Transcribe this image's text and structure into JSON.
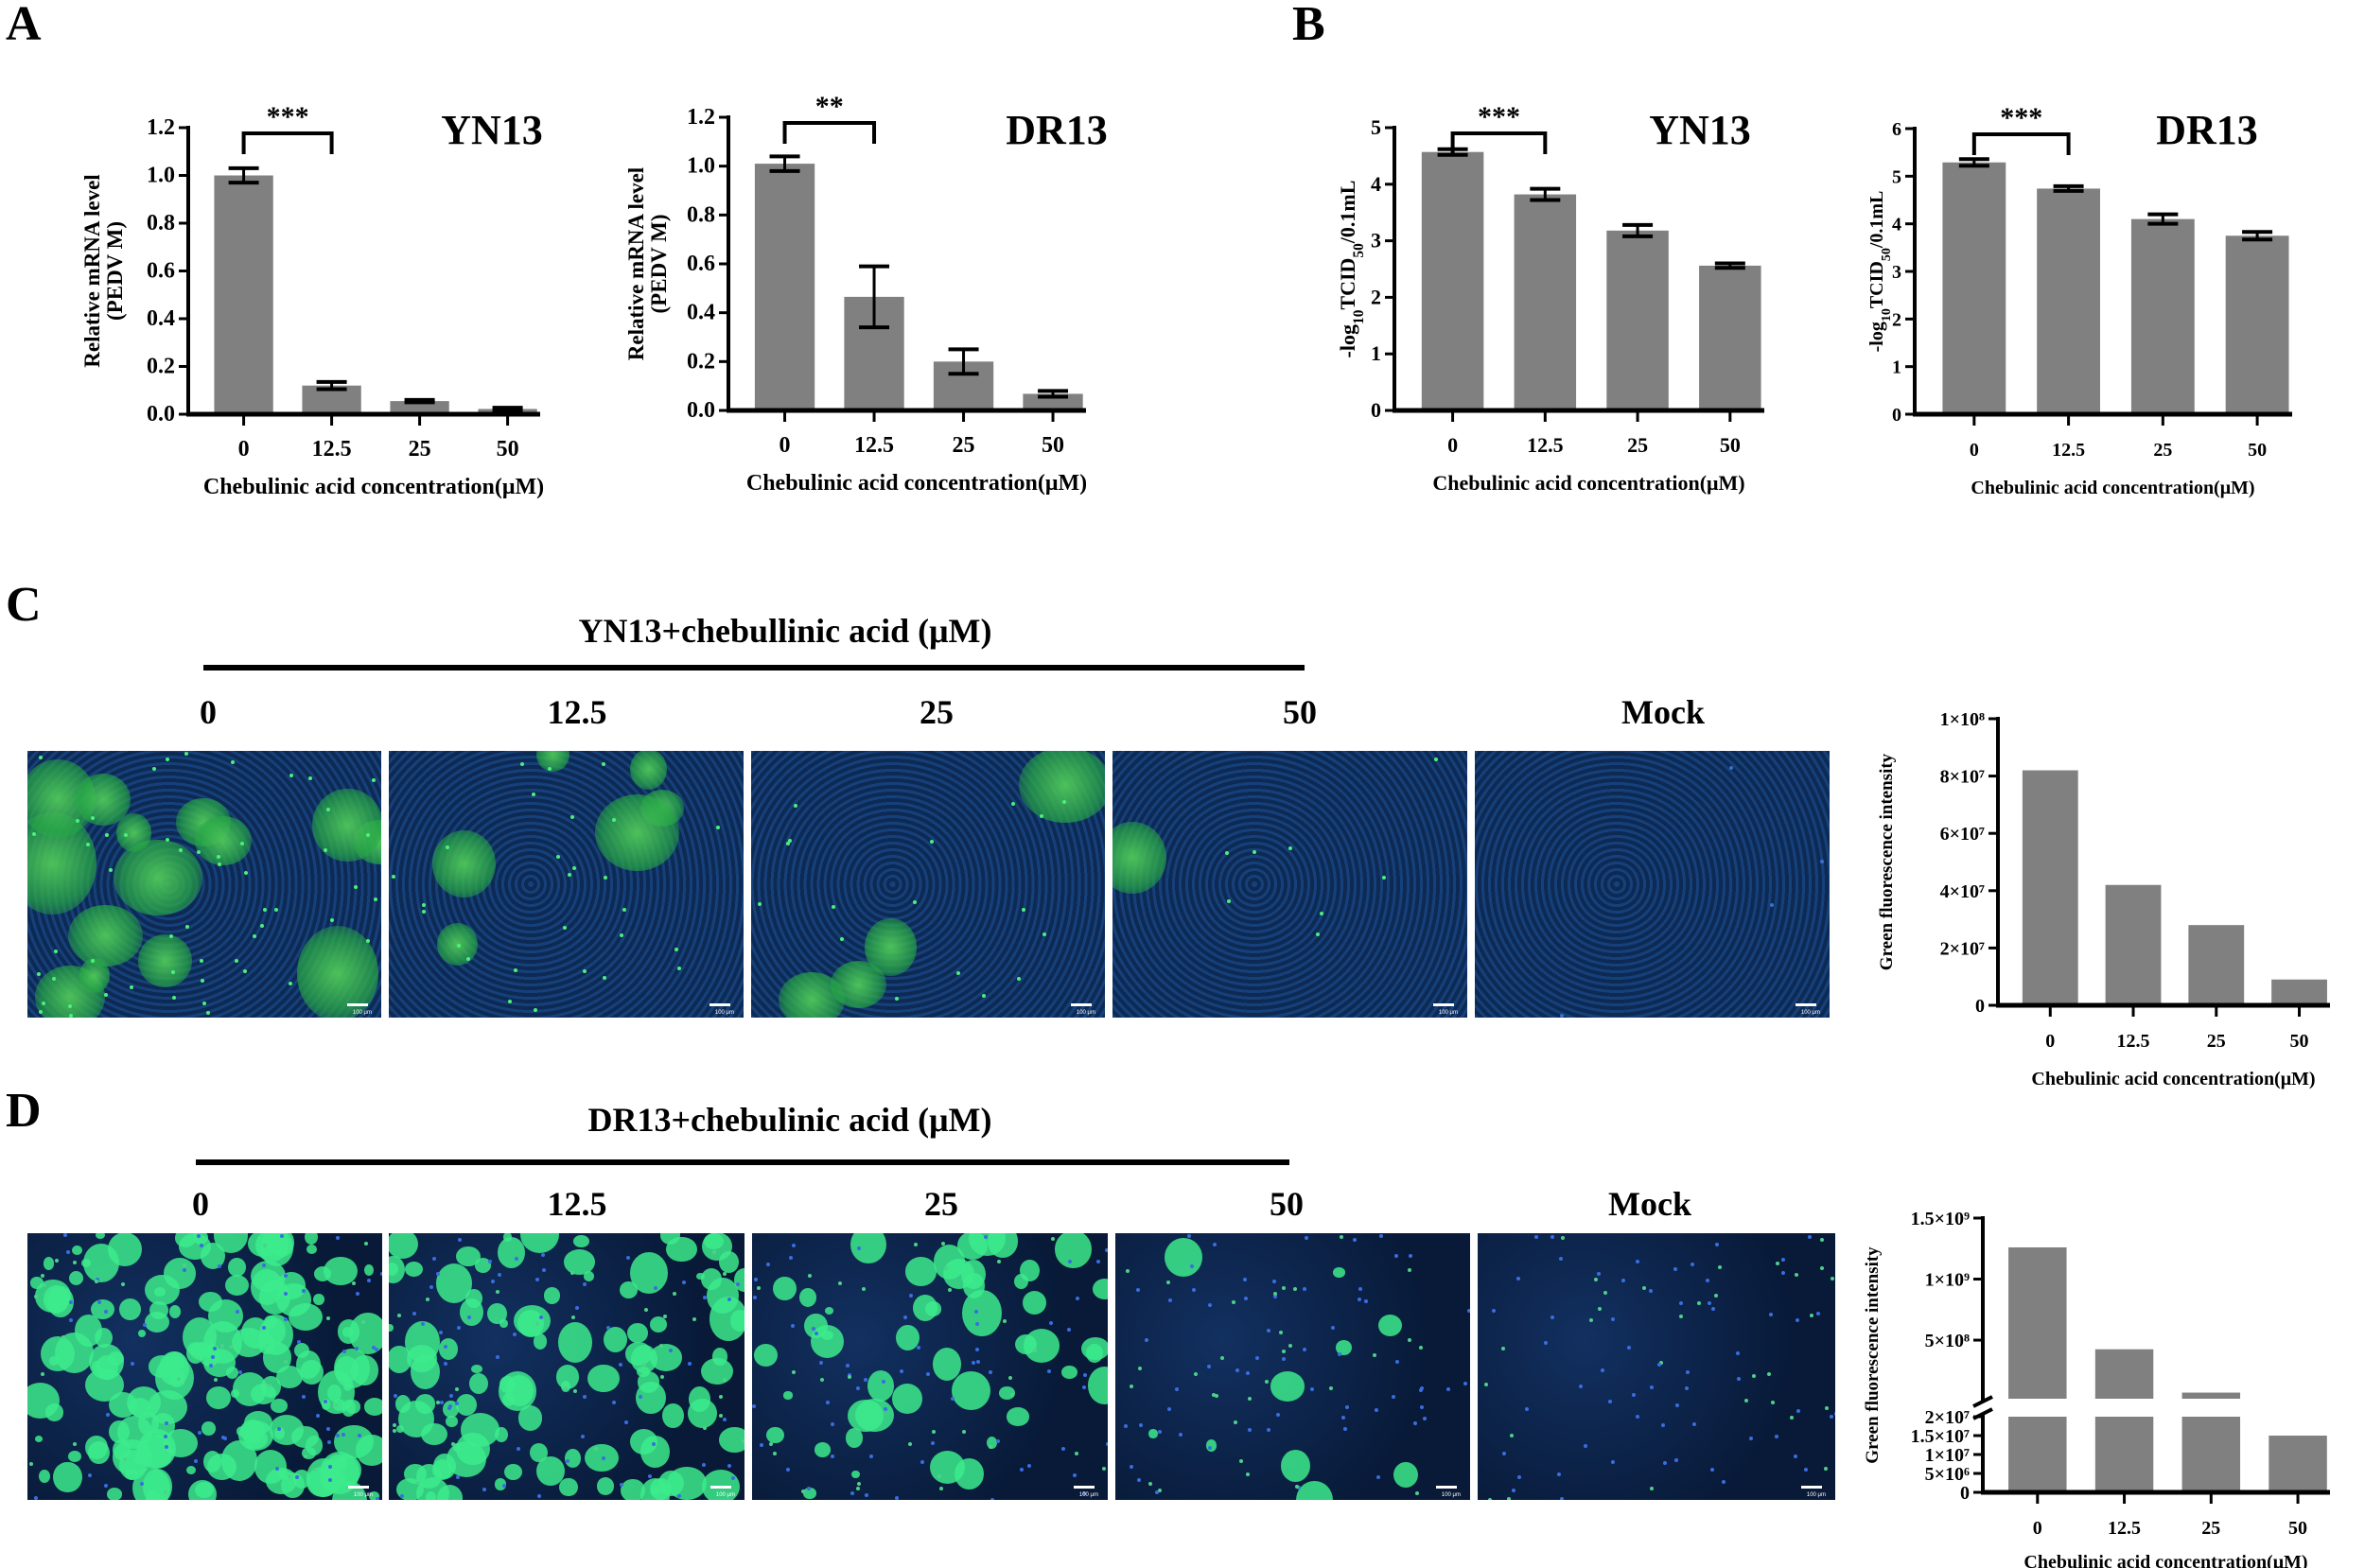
{
  "panels": {
    "A": "A",
    "B": "B",
    "C": "C",
    "D": "D"
  },
  "row_c": {
    "title": "YN13+chebullinic acid (μM)",
    "labels": [
      "0",
      "12.5",
      "25",
      "50",
      "Mock"
    ],
    "scale_bar": "100 μm",
    "green_levels": [
      1.0,
      0.45,
      0.25,
      0.08,
      0.0
    ]
  },
  "row_d": {
    "title": "DR13+chebulinic acid (μM)",
    "labels": [
      "0",
      "12.5",
      "25",
      "50",
      "Mock"
    ],
    "scale_bar": "100 μm",
    "green_levels": [
      1.0,
      0.65,
      0.3,
      0.06,
      0.0
    ]
  },
  "colors": {
    "bar": "#808080",
    "axis": "#000000",
    "nuclei": "#1f4fa0",
    "gfp": "#33e07a"
  },
  "chart_data": [
    {
      "id": "A-YN13",
      "type": "bar",
      "title": "YN13",
      "xlabel": "Chebulinic acid concentration(μM)",
      "ylabel": [
        "Relative  mRNA level",
        "(PEDV M)"
      ],
      "categories": [
        "0",
        "12.5",
        "25",
        "50"
      ],
      "values": [
        1.0,
        0.12,
        0.055,
        0.022
      ],
      "errors": [
        0.03,
        0.015,
        0.005,
        0.005
      ],
      "ylim": [
        0,
        1.2
      ],
      "yticks": [
        "0.0",
        "0.2",
        "0.4",
        "0.6",
        "0.8",
        "1.0",
        "1.2"
      ],
      "significance": {
        "pair": [
          "0",
          "12.5"
        ],
        "label": "***"
      }
    },
    {
      "id": "A-DR13",
      "type": "bar",
      "title": "DR13",
      "xlabel": "Chebulinic acid concentration(μM)",
      "ylabel": [
        "Relative  mRNA level",
        "(PEDV M)"
      ],
      "categories": [
        "0",
        "12.5",
        "25",
        "50"
      ],
      "values": [
        1.01,
        0.465,
        0.2,
        0.068
      ],
      "errors": [
        0.03,
        0.125,
        0.05,
        0.012
      ],
      "ylim": [
        0,
        1.2
      ],
      "yticks": [
        "0.0",
        "0.2",
        "0.4",
        "0.6",
        "0.8",
        "1.0",
        "1.2"
      ],
      "significance": {
        "pair": [
          "0",
          "12.5"
        ],
        "label": "**"
      }
    },
    {
      "id": "B-YN13",
      "type": "bar",
      "title": "YN13",
      "xlabel": "Chebulinic acid concentration(μM)",
      "ylabel_parts": [
        "-log",
        "10",
        "TCID",
        "50",
        "/0.1mL"
      ],
      "categories": [
        "0",
        "12.5",
        "25",
        "50"
      ],
      "values": [
        4.57,
        3.82,
        3.18,
        2.56
      ],
      "errors": [
        0.05,
        0.1,
        0.1,
        0.04
      ],
      "ylim": [
        0,
        5
      ],
      "yticks": [
        "0",
        "1",
        "2",
        "3",
        "4",
        "5"
      ],
      "significance": {
        "pair": [
          "0",
          "12.5"
        ],
        "label": "***"
      }
    },
    {
      "id": "B-DR13",
      "type": "bar",
      "title": "DR13",
      "xlabel": "Chebulinic acid concentration(μM)",
      "ylabel_parts": [
        "-log",
        "10",
        "TCID",
        "50",
        "/0.1mL"
      ],
      "categories": [
        "0",
        "12.5",
        "25",
        "50"
      ],
      "values": [
        5.29,
        4.74,
        4.1,
        3.75
      ],
      "errors": [
        0.07,
        0.05,
        0.1,
        0.08
      ],
      "ylim": [
        0,
        6
      ],
      "yticks": [
        "0",
        "1",
        "2",
        "3",
        "4",
        "5",
        "6"
      ],
      "significance": {
        "pair": [
          "0",
          "12.5"
        ],
        "label": "***"
      }
    },
    {
      "id": "C-intensity",
      "type": "bar",
      "xlabel": "Chebulinic acid concentration(μM)",
      "ylabel": [
        "Green fluorescence intensity"
      ],
      "categories": [
        "0",
        "12.5",
        "25",
        "50"
      ],
      "values": [
        82000000,
        42000000,
        28000000,
        9000000
      ],
      "ylim": [
        0,
        100000000
      ],
      "yticks": [
        "0",
        "2×10⁷",
        "4×10⁷",
        "6×10⁷",
        "8×10⁷",
        "1×10⁸"
      ]
    },
    {
      "id": "D-intensity",
      "type": "bar",
      "axis_break": true,
      "xlabel": "Chebulinic acid concentration(μM)",
      "ylabel": [
        "Green fluorescence intensity"
      ],
      "categories": [
        "0",
        "12.5",
        "25",
        "50"
      ],
      "values": [
        1260000000,
        425000000,
        70000000,
        15000000
      ],
      "lower_ylim": [
        0,
        20000000
      ],
      "upper_ylim": [
        20000000,
        1500000000
      ],
      "lower_yticks": [
        {
          "v": 0,
          "t": "0"
        },
        {
          "v": 5000000,
          "t": "5×10⁶"
        },
        {
          "v": 10000000,
          "t": "1×10⁷"
        },
        {
          "v": 15000000,
          "t": "1.5×10⁷"
        },
        {
          "v": 20000000,
          "t": "2×10⁷"
        }
      ],
      "upper_yticks": [
        {
          "v": 500000000,
          "t": "5×10⁸"
        },
        {
          "v": 1000000000,
          "t": "1×10⁹"
        },
        {
          "v": 1500000000,
          "t": "1.5×10⁹"
        }
      ]
    }
  ]
}
